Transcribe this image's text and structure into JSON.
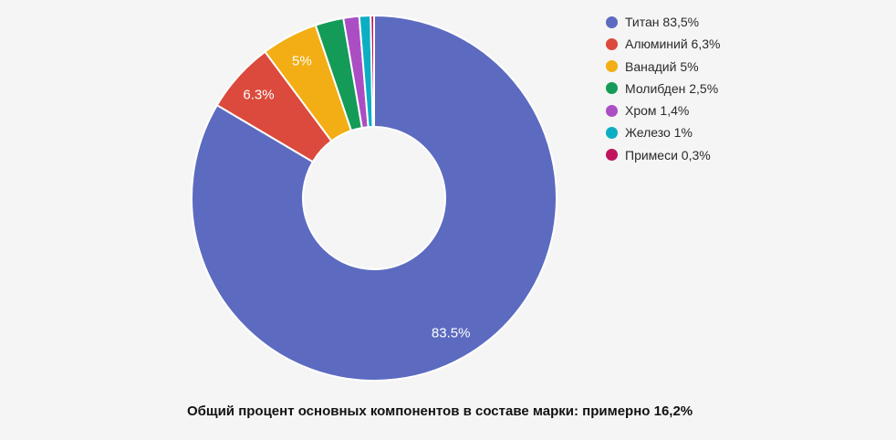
{
  "page": {
    "background_color": "#f5f5f5"
  },
  "chart_data": {
    "type": "pie",
    "subtype": "donut",
    "legend_position": "right",
    "direction": "clockwise",
    "start_angle_deg": 0,
    "inner_radius_ratio": 0.39,
    "slice_border_color": "#ffffff",
    "categories": [
      "Титан",
      "Алюминий",
      "Ванадий",
      "Молибден",
      "Хром",
      "Железо",
      "Примеси"
    ],
    "values": [
      83.5,
      6.3,
      5,
      2.5,
      1.4,
      1,
      0.3
    ],
    "colors": [
      "#5c6bc0",
      "#db4a3c",
      "#f2ae14",
      "#159b58",
      "#ab4ec4",
      "#0caec3",
      "#c0145e"
    ],
    "slice_labels": [
      "83.5%",
      "6.3%",
      "5%",
      "",
      "",
      "",
      ""
    ],
    "slice_label_color": "#ffffff",
    "legend_labels": [
      "Титан 83,5%",
      "Алюминий 6,3%",
      "Ванадий 5%",
      "Молибден 2,5%",
      "Хром 1,4%",
      "Железо 1%",
      "Примеси 0,3%"
    ],
    "caption": "Общий процент основных компонентов в составе марки: примерно 16,2%"
  }
}
